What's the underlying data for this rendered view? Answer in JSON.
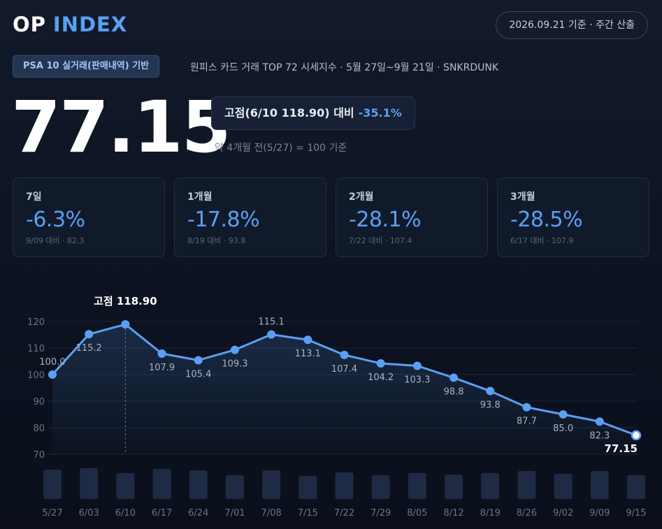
{
  "header": {
    "logo_op": "OP",
    "logo_index": "INDEX",
    "date_label": "2026.09.21 기준 · 주간 산출"
  },
  "info": {
    "badge": "PSA 10 실거래(판매내역) 기반",
    "subtitle": "원피스 카드 거래 TOP 72 시세지수 · 5월 27일~9월 21일 · SNKRDUNK"
  },
  "summary": {
    "current_value": "77.15",
    "peak_label": "고점(6/10 118.90) 대비",
    "peak_change": "-35.1%",
    "base_note": "약 4개월 전(5/27) = 100 기준"
  },
  "cards": [
    {
      "label": "7일",
      "value": "-6.3%",
      "ref": "9/09 대비 · 82.3"
    },
    {
      "label": "1개월",
      "value": "-17.8%",
      "ref": "8/19 대비 · 93.8"
    },
    {
      "label": "2개월",
      "value": "-28.1%",
      "ref": "7/22 대비 · 107.4"
    },
    {
      "label": "3개월",
      "value": "-28.5%",
      "ref": "6/17 대비 · 107.9"
    }
  ],
  "colors": {
    "accent": "#5aa0f2",
    "bar": "#1f2b45"
  },
  "chart_data": {
    "type": "line",
    "categories": [
      "5/27",
      "6/03",
      "6/10",
      "6/17",
      "6/24",
      "7/01",
      "7/08",
      "7/15",
      "7/22",
      "7/29",
      "8/05",
      "8/12",
      "8/19",
      "8/26",
      "9/02",
      "9/09",
      "9/15"
    ],
    "series": [
      {
        "values": [
          100.0,
          115.2,
          118.9,
          107.9,
          105.4,
          109.3,
          115.1,
          113.1,
          107.4,
          104.2,
          103.3,
          98.8,
          93.8,
          87.7,
          85.0,
          82.3,
          77.15
        ]
      }
    ],
    "data_labels": [
      "100.0",
      "115.2",
      "",
      "107.9",
      "105.4",
      "109.3",
      "115.1",
      "113.1",
      "107.4",
      "104.2",
      "103.3",
      "98.8",
      "93.8",
      "87.7",
      "85.0",
      "82.3",
      "77.15"
    ],
    "volume": [
      42,
      44,
      37,
      43,
      41,
      34,
      41,
      33,
      38,
      34,
      37,
      35,
      37,
      40,
      36,
      40,
      34
    ],
    "yticks": [
      "70",
      "80",
      "90",
      "100",
      "110",
      "120"
    ],
    "ylim": [
      70,
      120
    ],
    "peak_annotation": {
      "index": 2,
      "label": "고점",
      "value": "118.90"
    },
    "grid": true
  }
}
